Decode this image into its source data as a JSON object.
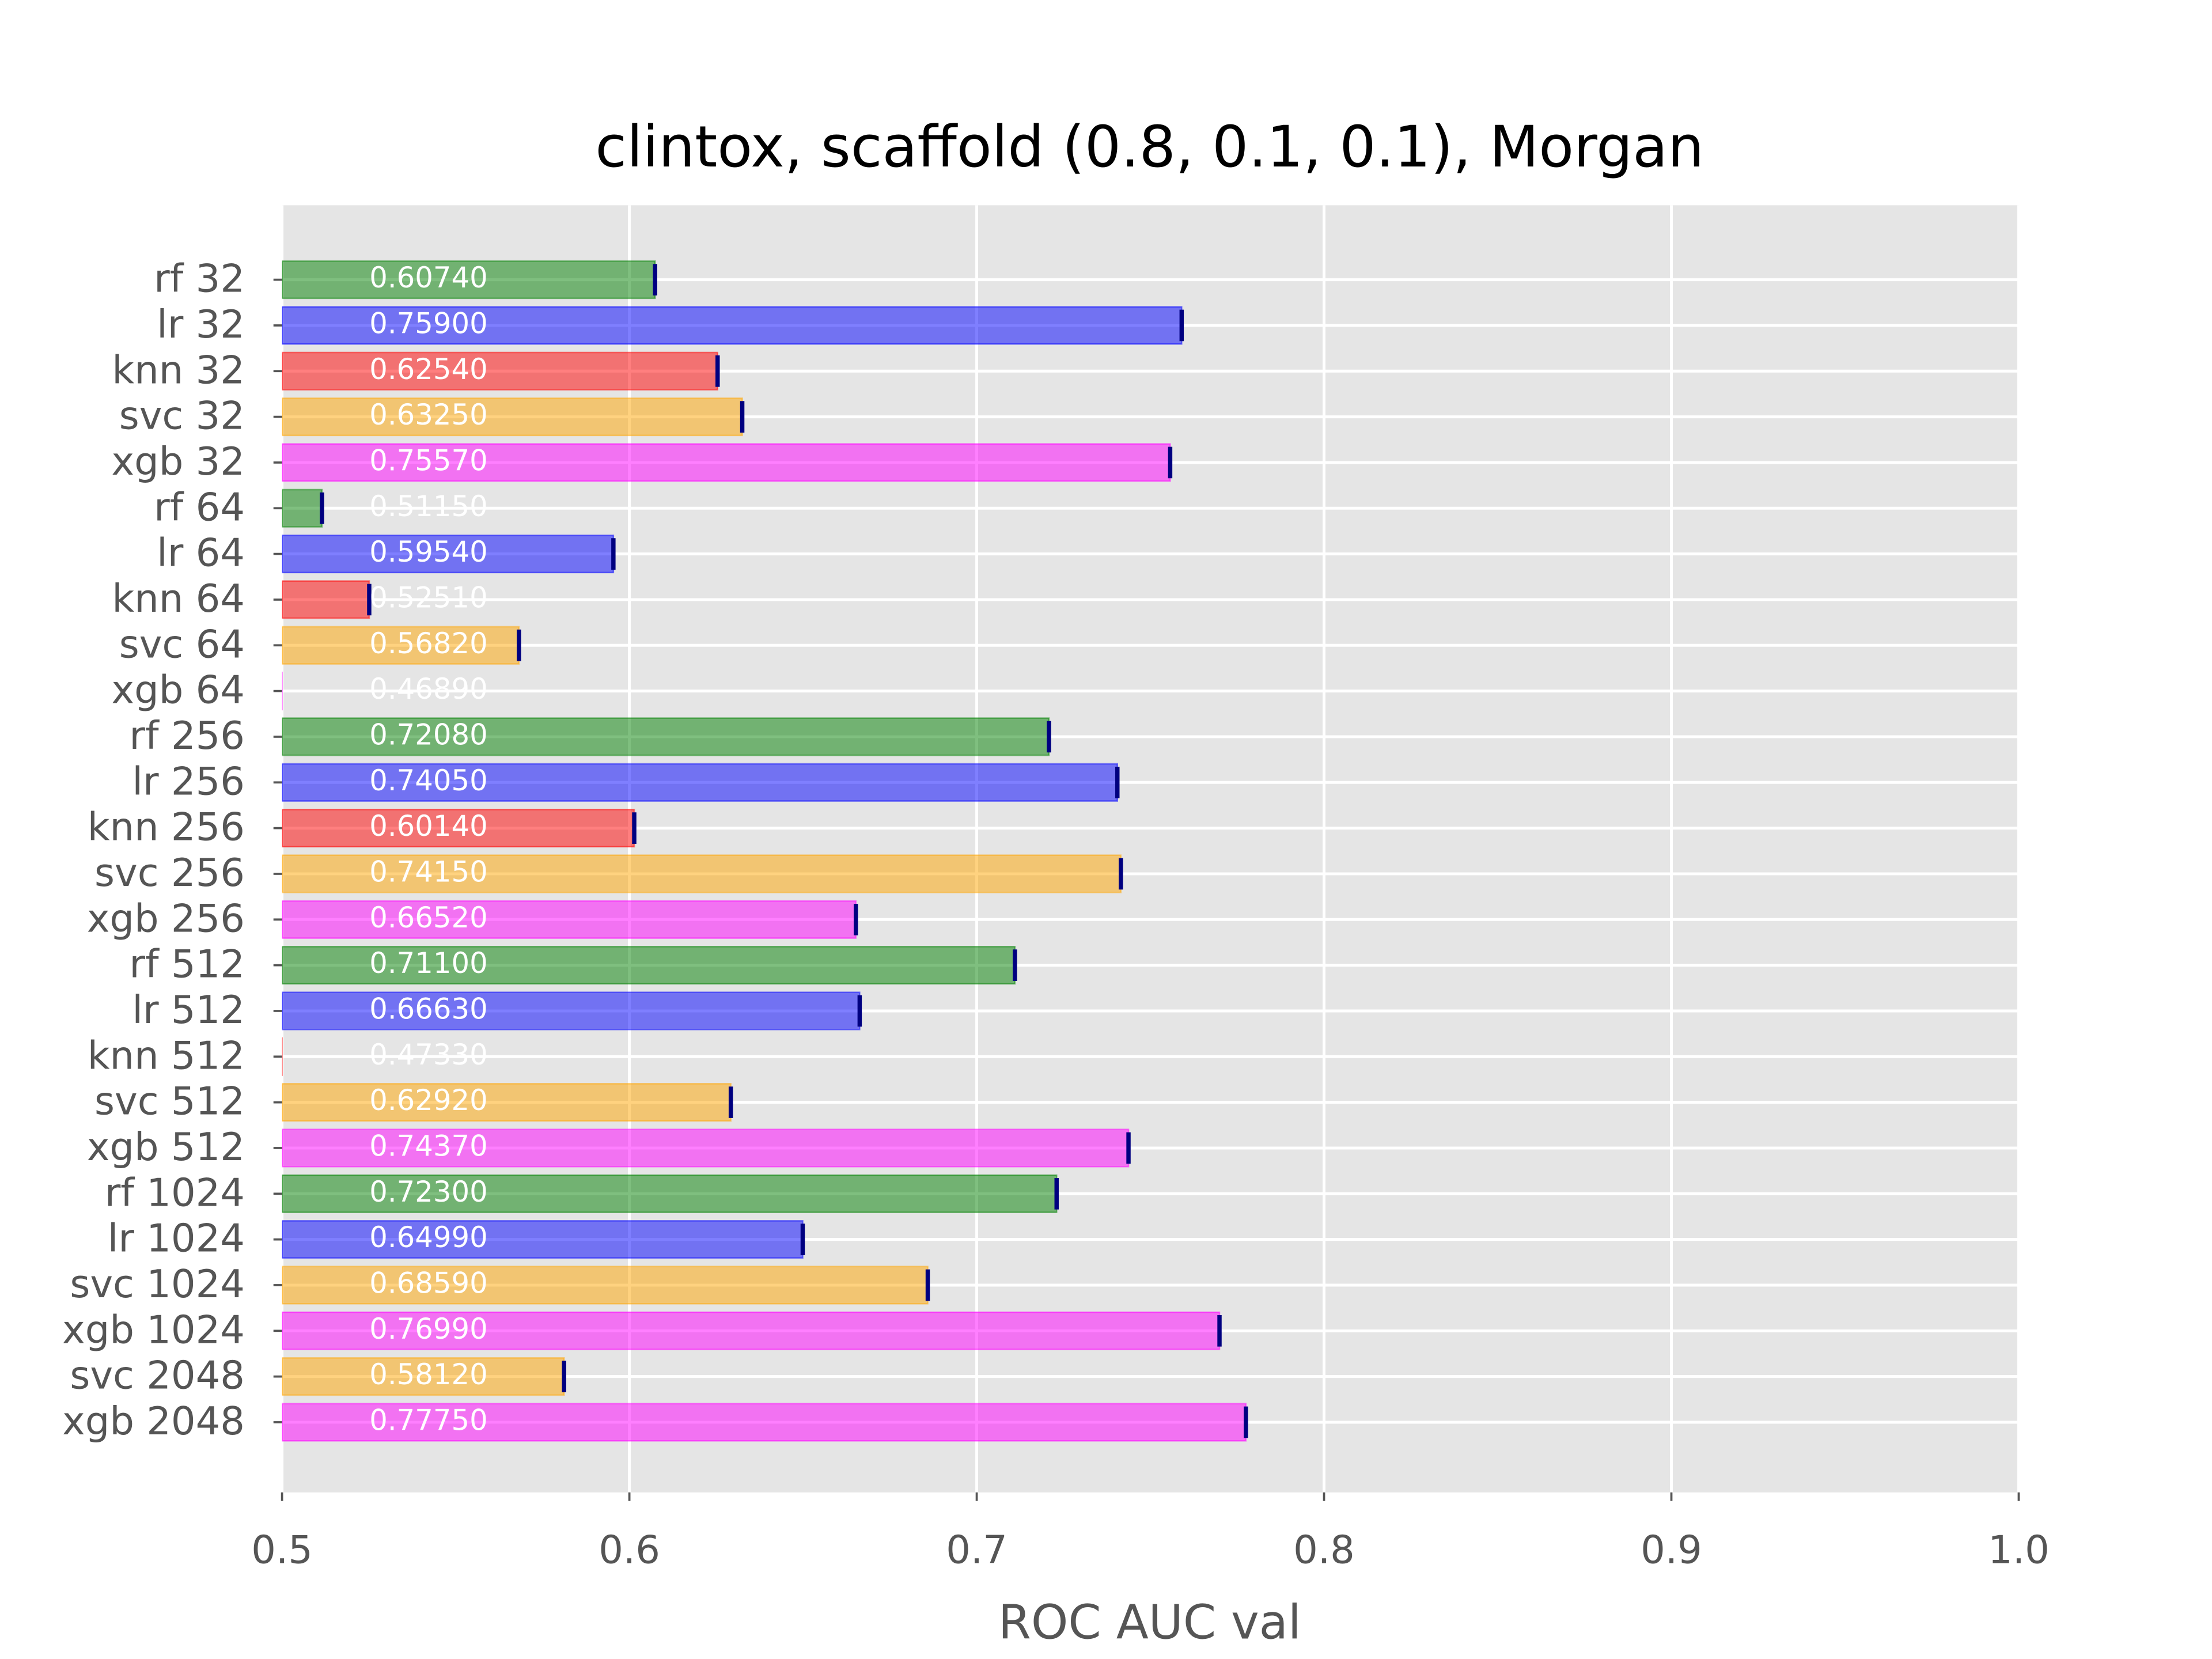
{
  "chart_data": {
    "type": "barh",
    "title": "clintox, scaffold (0.8, 0.1, 0.1), Morgan",
    "xlabel": "ROC AUC val",
    "categories": [
      "rf 32",
      "lr 32",
      "knn 32",
      "svc 32",
      "xgb 32",
      "rf 64",
      "lr 64",
      "knn 64",
      "svc 64",
      "xgb 64",
      "rf 256",
      "lr 256",
      "knn 256",
      "svc 256",
      "xgb 256",
      "rf 512",
      "lr 512",
      "knn 512",
      "svc 512",
      "xgb 512",
      "rf 1024",
      "lr 1024",
      "svc 1024",
      "xgb 1024",
      "svc 2048",
      "xgb 2048"
    ],
    "values": [
      0.6074,
      0.759,
      0.6254,
      0.6325,
      0.7557,
      0.5115,
      0.5954,
      0.5251,
      0.5682,
      0.4689,
      0.7208,
      0.7405,
      0.6014,
      0.7415,
      0.6652,
      0.711,
      0.6663,
      0.4733,
      0.6292,
      0.7437,
      0.723,
      0.6499,
      0.6859,
      0.7699,
      0.5812,
      0.7775
    ],
    "value_labels": [
      "0.60740",
      "0.75900",
      "0.62540",
      "0.63250",
      "0.75570",
      "0.51150",
      "0.59540",
      "0.52510",
      "0.56820",
      "0.46890",
      "0.72080",
      "0.74050",
      "0.60140",
      "0.74150",
      "0.66520",
      "0.71100",
      "0.66630",
      "0.47330",
      "0.62920",
      "0.74370",
      "0.72300",
      "0.64990",
      "0.68590",
      "0.76990",
      "0.58120",
      "0.77750"
    ],
    "colors": [
      "green",
      "blue",
      "red",
      "orange",
      "magenta",
      "green",
      "blue",
      "red",
      "orange",
      "magenta",
      "green",
      "blue",
      "red",
      "orange",
      "magenta",
      "green",
      "blue",
      "red",
      "orange",
      "magenta",
      "green",
      "blue",
      "orange",
      "magenta",
      "orange",
      "magenta"
    ],
    "xlim": [
      0.5,
      1.0
    ],
    "xticks": [
      0.5,
      0.6,
      0.7,
      0.8,
      0.9,
      {
        "value": 1.0,
        "label": "1.0"
      }
    ],
    "grid": true
  }
}
